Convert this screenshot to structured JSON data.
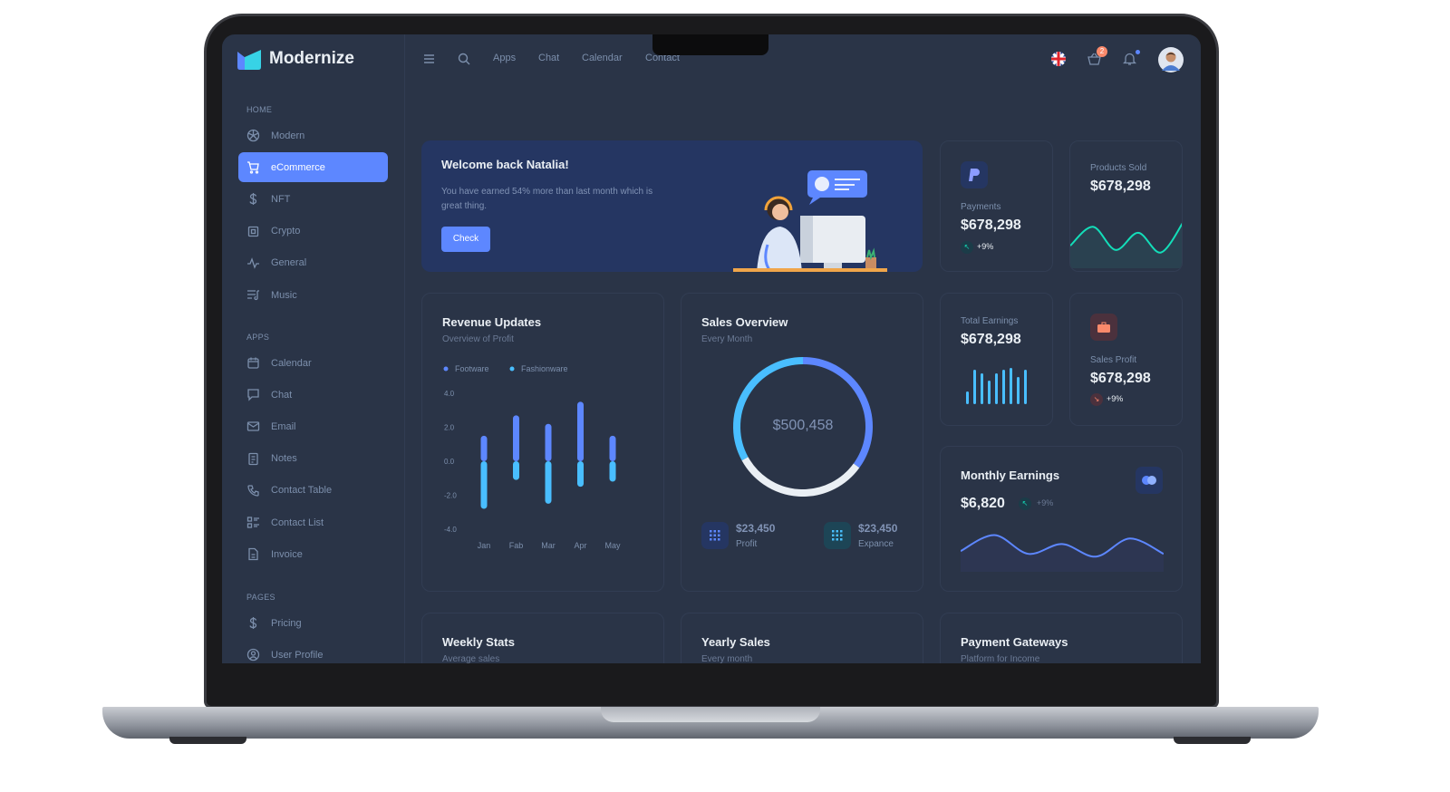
{
  "app": {
    "name": "Modernize"
  },
  "header": {
    "nav": [
      "Apps",
      "Chat",
      "Calendar",
      "Contact"
    ],
    "cart_badge": "2",
    "icons": [
      "menu-icon",
      "search-icon",
      "uk-flag-icon",
      "cart-icon",
      "bell-icon",
      "avatar"
    ]
  },
  "sidebar": {
    "sections": [
      {
        "title": "HOME",
        "items": [
          {
            "label": "Modern",
            "icon": "aperture-icon"
          },
          {
            "label": "eCommerce",
            "icon": "shopping-cart-icon",
            "active": true
          },
          {
            "label": "NFT",
            "icon": "dollar-icon"
          },
          {
            "label": "Crypto",
            "icon": "cpu-icon"
          },
          {
            "label": "General",
            "icon": "activity-icon"
          },
          {
            "label": "Music",
            "icon": "playlist-icon"
          }
        ]
      },
      {
        "title": "APPS",
        "items": [
          {
            "label": "Calendar",
            "icon": "calendar-icon"
          },
          {
            "label": "Chat",
            "icon": "message-icon"
          },
          {
            "label": "Email",
            "icon": "mail-icon"
          },
          {
            "label": "Notes",
            "icon": "notes-icon"
          },
          {
            "label": "Contact Table",
            "icon": "phone-icon"
          },
          {
            "label": "Contact List",
            "icon": "list-details-icon"
          },
          {
            "label": "Invoice",
            "icon": "file-text-icon"
          }
        ]
      },
      {
        "title": "PAGES",
        "items": [
          {
            "label": "Pricing",
            "icon": "dollar-icon"
          },
          {
            "label": "User Profile",
            "icon": "user-circle-icon"
          }
        ]
      }
    ]
  },
  "welcome": {
    "title": "Welcome back Natalia!",
    "text": "You have earned 54% more than last month which is great thing.",
    "button": "Check"
  },
  "payments": {
    "label": "Payments",
    "value": "$678,298",
    "change": "+9%"
  },
  "products_sold": {
    "label": "Products Sold",
    "value": "$678,298"
  },
  "total_earnings": {
    "label": "Total Earnings",
    "value": "$678,298"
  },
  "sales_profit": {
    "label": "Sales Profit",
    "value": "$678,298",
    "change": "+9%"
  },
  "monthly_earnings": {
    "title": "Monthly Earnings",
    "value": "$6,820",
    "change": "+9%"
  },
  "revenue": {
    "title": "Revenue Updates",
    "subtitle": "Overview of Profit"
  },
  "sales_overview": {
    "title": "Sales Overview",
    "subtitle": "Every Month",
    "center": "$500,458",
    "profit_value": "$23,450",
    "profit_label": "Profit",
    "expense_value": "$23,450",
    "expense_label": "Expance"
  },
  "bottom": [
    {
      "title": "Weekly Stats",
      "subtitle": "Average sales"
    },
    {
      "title": "Yearly Sales",
      "subtitle": "Every month"
    },
    {
      "title": "Payment Gateways",
      "subtitle": "Platform for Income"
    }
  ],
  "colors": {
    "primary": "#5d87ff",
    "secondary": "#49beff",
    "success": "#13deb9",
    "error": "#fa896b",
    "bg": "#2a3447"
  },
  "chart_data": [
    {
      "type": "bar",
      "stacked": true,
      "categories": [
        "Jan",
        "Fab",
        "Mar",
        "Apr",
        "May"
      ],
      "series": [
        {
          "name": "Footware",
          "values": [
            1.5,
            2.7,
            2.2,
            3.5,
            1.5
          ],
          "color": "#5d87ff"
        },
        {
          "name": "Fashionware",
          "values": [
            -2.8,
            -1.1,
            -2.5,
            -1.5,
            -1.2
          ],
          "color": "#49beff"
        }
      ],
      "ylim": [
        -4,
        4
      ],
      "yticks": [
        "4.0",
        "2.0",
        "0.0",
        "-2.0",
        "-4.0"
      ],
      "legend": "top-left"
    },
    {
      "type": "pie",
      "donut": true,
      "values": [
        35,
        32,
        33
      ],
      "colors": [
        "#5d87ff",
        "#eaeff4",
        "#49beff"
      ]
    },
    {
      "type": "area",
      "values": [
        20,
        42,
        15,
        35,
        12,
        48
      ],
      "color": "#13deb9"
    },
    {
      "type": "bar",
      "values": [
        35,
        95,
        85,
        65,
        85,
        95,
        100,
        75,
        95
      ],
      "color": "#49beff"
    },
    {
      "type": "area",
      "values": [
        22,
        45,
        18,
        32,
        14,
        40,
        18
      ],
      "color": "#5d87ff"
    }
  ]
}
